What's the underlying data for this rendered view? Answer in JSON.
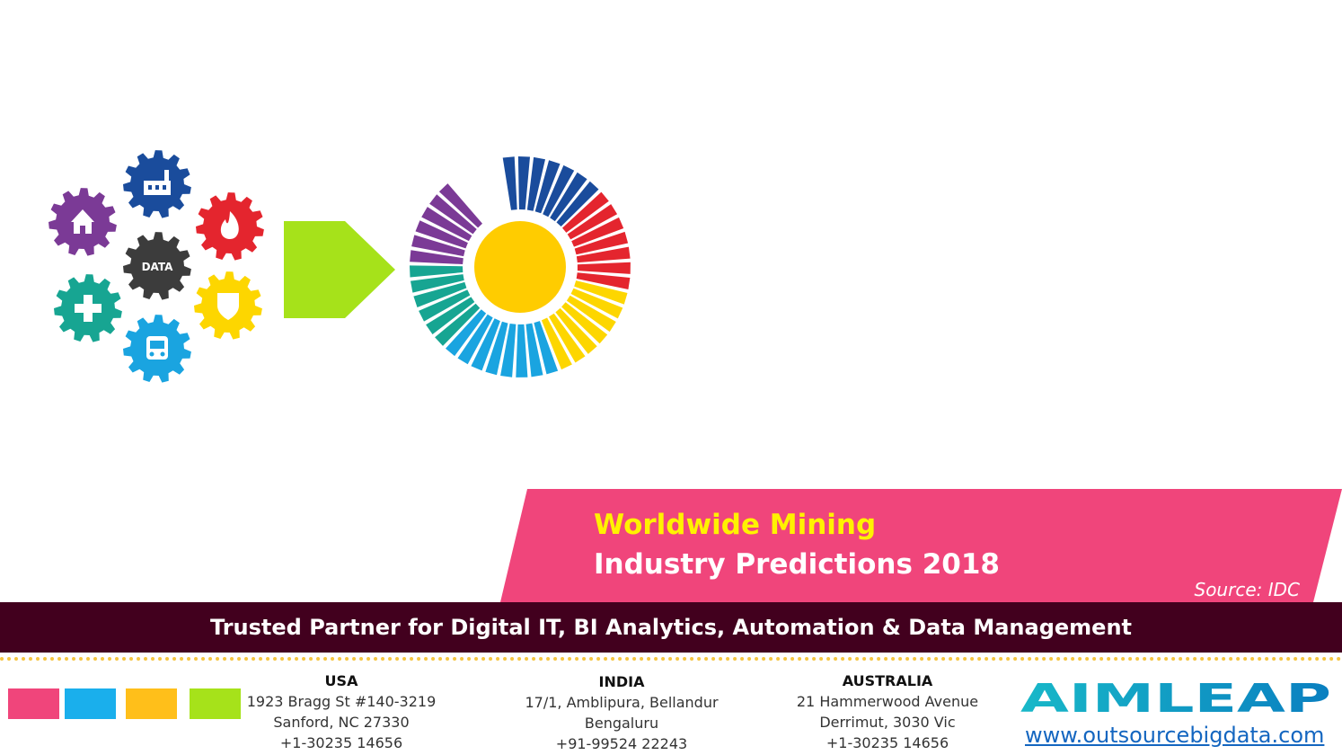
{
  "illustration": {
    "center_gear_label": "DATA",
    "gear_icons": [
      "house-icon",
      "factory-icon",
      "flame-icon",
      "shield-icon",
      "bus-icon",
      "medical-cross-icon"
    ],
    "colors": {
      "purple": "#7b3a96",
      "blue": "#1a4c9c",
      "red": "#e4252e",
      "yellow": "#fdd600",
      "cyan": "#1aa4e0",
      "teal": "#17a592",
      "dark": "#3c3c3c",
      "arrow": "#a6e21a",
      "center": "#ffcc00"
    }
  },
  "banner": {
    "title_line1": "Worldwide Mining",
    "title_line2": "Industry Predictions 2018",
    "source": "Source: IDC",
    "background_color": "#f0457b"
  },
  "footer": {
    "tagline": "Trusted Partner for Digital IT, BI Analytics, Automation & Data Management",
    "swatch_colors": [
      "#f0457b",
      "#1aafec",
      "#ffbf1a",
      "#a6e21a"
    ],
    "offices": [
      {
        "country": "USA",
        "lines": [
          "1923 Bragg St #140-3219",
          "Sanford, NC 27330",
          "+1-30235 14656"
        ]
      },
      {
        "country": "INDIA",
        "lines": [
          "17/1, Amblipura, Bellandur",
          "Bengaluru",
          "+91-99524 22243"
        ]
      },
      {
        "country": "AUSTRALIA",
        "lines": [
          "21 Hammerwood Avenue",
          "Derrimut, 3030 Vic",
          "+1-30235 14656"
        ]
      }
    ],
    "logo_text": "AIMLEAP",
    "website": "www.outsourcebigdata.com"
  }
}
